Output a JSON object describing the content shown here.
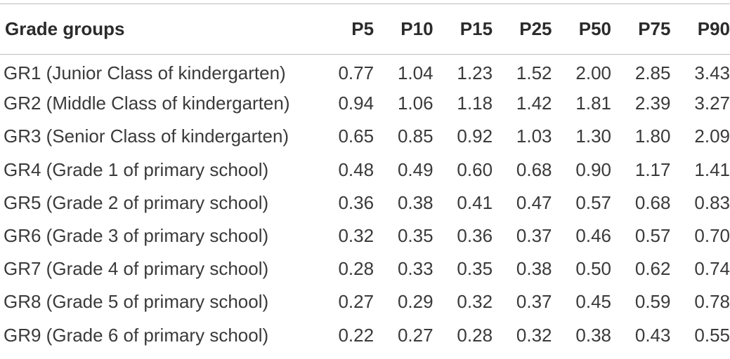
{
  "table": {
    "columns": [
      "Grade groups",
      "P5",
      "P10",
      "P15",
      "P25",
      "P50",
      "P75",
      "P90"
    ],
    "rows": [
      [
        "GR1 (Junior Class of kindergarten)",
        "0.77",
        "1.04",
        "1.23",
        "1.52",
        "2.00",
        "2.85",
        "3.43"
      ],
      [
        "GR2 (Middle Class of kindergarten)",
        "0.94",
        "1.06",
        "1.18",
        "1.42",
        "1.81",
        "2.39",
        "3.27"
      ],
      [
        "GR3 (Senior Class of kindergarten)",
        "0.65",
        "0.85",
        "0.92",
        "1.03",
        "1.30",
        "1.80",
        "2.09"
      ],
      [
        "GR4 (Grade 1 of primary school)",
        "0.48",
        "0.49",
        "0.60",
        "0.68",
        "0.90",
        "1.17",
        "1.41"
      ],
      [
        "GR5 (Grade 2 of primary school)",
        "0.36",
        "0.38",
        "0.41",
        "0.47",
        "0.57",
        "0.68",
        "0.83"
      ],
      [
        "GR6 (Grade 3 of primary school)",
        "0.32",
        "0.35",
        "0.36",
        "0.37",
        "0.46",
        "0.57",
        "0.70"
      ],
      [
        "GR7 (Grade 4 of primary school)",
        "0.28",
        "0.33",
        "0.35",
        "0.38",
        "0.50",
        "0.62",
        "0.74"
      ],
      [
        "GR8 (Grade 5 of primary school)",
        "0.27",
        "0.29",
        "0.32",
        "0.37",
        "0.45",
        "0.59",
        "0.78"
      ],
      [
        "GR9 (Grade 6 of primary school)",
        "0.22",
        "0.27",
        "0.28",
        "0.32",
        "0.38",
        "0.43",
        "0.55"
      ]
    ]
  }
}
